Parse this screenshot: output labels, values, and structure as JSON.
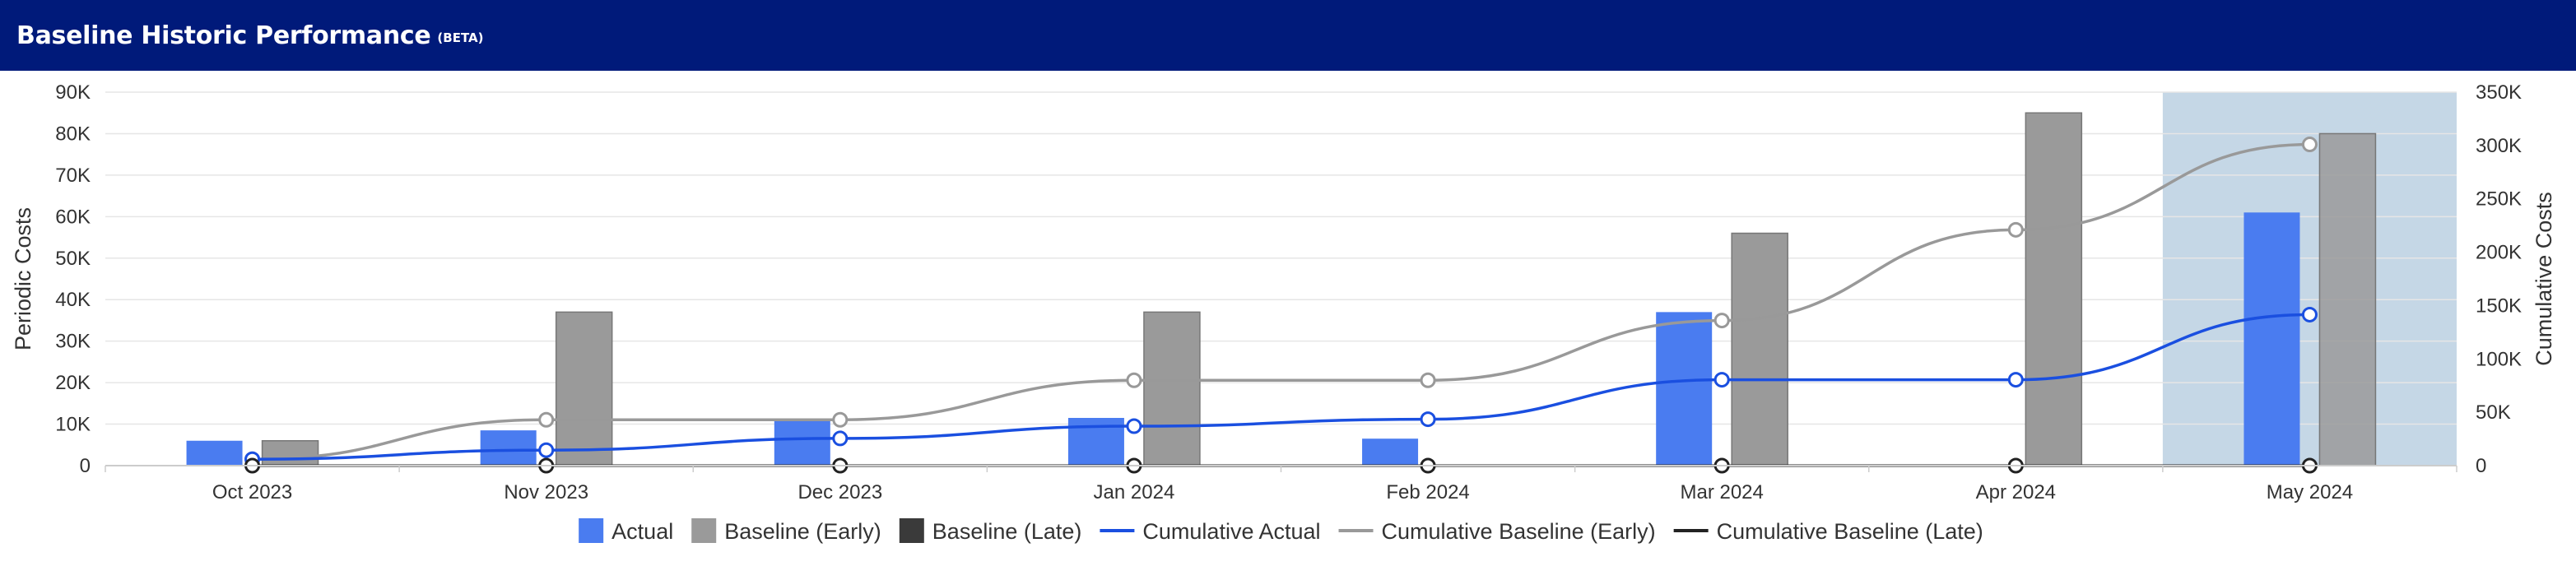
{
  "header": {
    "title": "Baseline Historic Performance",
    "badge": "(BETA)"
  },
  "chart_data": {
    "type": "bar",
    "categories": [
      "Oct 2023",
      "Nov 2023",
      "Dec 2023",
      "Jan 2024",
      "Feb 2024",
      "Mar 2024",
      "Apr 2024",
      "May 2024"
    ],
    "series": [
      {
        "name": "Actual",
        "type": "bar",
        "axis": "left",
        "color": "#4a7cf0",
        "values": [
          6000,
          8500,
          11000,
          11500,
          6500,
          37000,
          null,
          61000
        ]
      },
      {
        "name": "Baseline (Early)",
        "type": "bar",
        "axis": "left",
        "color": "#9a9a9a",
        "values": [
          6000,
          37000,
          null,
          37000,
          null,
          56000,
          85000,
          80000
        ]
      },
      {
        "name": "Baseline (Late)",
        "type": "bar",
        "axis": "left",
        "color": "#3a3a3a",
        "values": [
          0,
          0,
          0,
          0,
          0,
          0,
          0,
          0
        ]
      },
      {
        "name": "Cumulative Actual",
        "type": "line",
        "axis": "right",
        "color": "#1a4fe0",
        "values": [
          6000,
          14500,
          25500,
          37000,
          43500,
          80500,
          80500,
          141500
        ]
      },
      {
        "name": "Cumulative Baseline (Early)",
        "type": "line",
        "axis": "right",
        "color": "#999999",
        "values": [
          6000,
          43000,
          43000,
          80000,
          80000,
          136000,
          221000,
          301000
        ]
      },
      {
        "name": "Cumulative Baseline (Late)",
        "type": "line",
        "axis": "right",
        "color": "#222222",
        "values": [
          0,
          0,
          0,
          0,
          0,
          0,
          0,
          0
        ]
      }
    ],
    "y_left": {
      "label": "Periodic Costs",
      "min": 0,
      "max": 90000,
      "ticks": [
        "0",
        "10K",
        "20K",
        "30K",
        "40K",
        "50K",
        "60K",
        "70K",
        "80K",
        "90K"
      ]
    },
    "y_right": {
      "label": "Cumulative Costs",
      "min": 0,
      "max": 350000,
      "ticks": [
        "0",
        "50K",
        "100K",
        "150K",
        "200K",
        "250K",
        "300K",
        "350K"
      ]
    },
    "highlight": {
      "category": "May 2024",
      "color": "#c5d7e6"
    },
    "grid": true,
    "legend_position": "bottom",
    "legend": [
      {
        "label": "Actual",
        "kind": "square",
        "color": "#4a7cf0"
      },
      {
        "label": "Baseline (Early)",
        "kind": "square",
        "color": "#9a9a9a"
      },
      {
        "label": "Baseline (Late)",
        "kind": "square",
        "color": "#3a3a3a"
      },
      {
        "label": "Cumulative Actual",
        "kind": "line",
        "color": "#1a4fe0"
      },
      {
        "label": "Cumulative Baseline (Early)",
        "kind": "line",
        "color": "#999999"
      },
      {
        "label": "Cumulative Baseline (Late)",
        "kind": "line",
        "color": "#222222"
      }
    ]
  }
}
